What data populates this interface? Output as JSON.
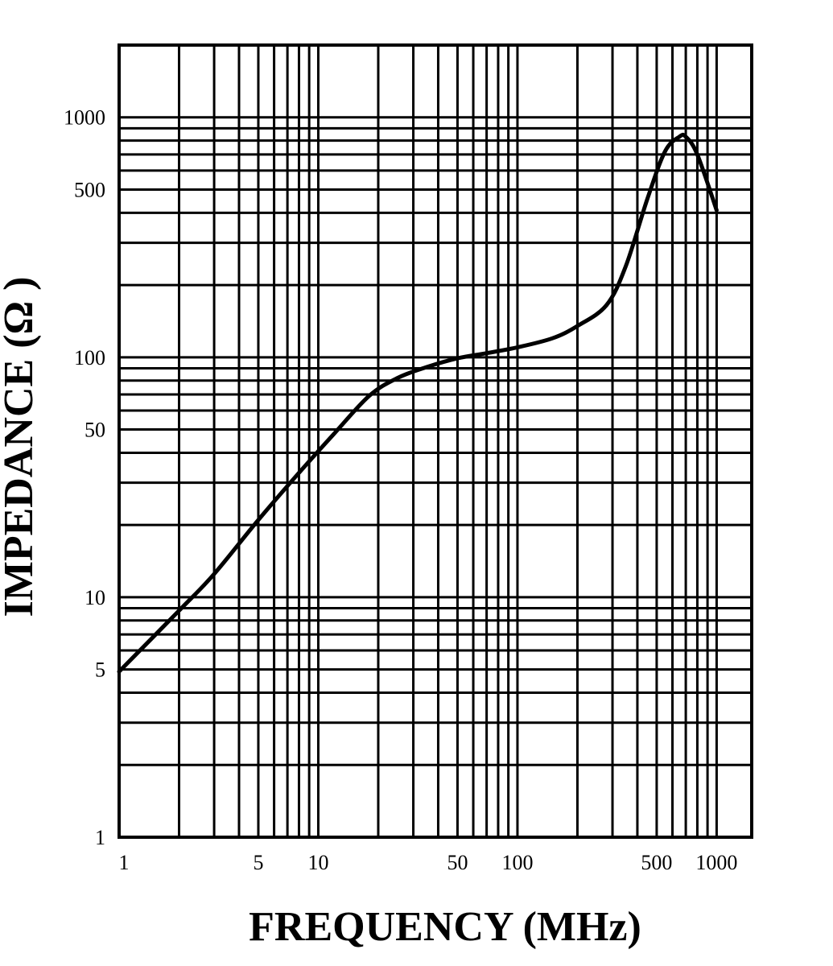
{
  "chart_data": {
    "type": "line",
    "xlabel": "FREQUENCY (MHz)",
    "ylabel": "IMPEDANCE (Ω )",
    "xscale": "log",
    "yscale": "log",
    "xlim": [
      1,
      1500
    ],
    "ylim": [
      1,
      2000
    ],
    "grid": true,
    "x_ticks": [
      {
        "value": 1,
        "label": "1"
      },
      {
        "value": 5,
        "label": "5"
      },
      {
        "value": 10,
        "label": "10"
      },
      {
        "value": 50,
        "label": "50"
      },
      {
        "value": 100,
        "label": "100"
      },
      {
        "value": 500,
        "label": "500"
      },
      {
        "value": 1000,
        "label": "1000"
      }
    ],
    "y_ticks": [
      {
        "value": 1,
        "label": "1"
      },
      {
        "value": 5,
        "label": "5"
      },
      {
        "value": 10,
        "label": "10"
      },
      {
        "value": 50,
        "label": "50"
      },
      {
        "value": 100,
        "label": "100"
      },
      {
        "value": 500,
        "label": "500"
      },
      {
        "value": 1000,
        "label": "1000"
      }
    ],
    "series": [
      {
        "color": "#000000",
        "x": [
          1,
          2,
          3,
          5,
          8,
          12,
          18,
          25,
          35,
          50,
          70,
          100,
          150,
          200,
          280,
          350,
          450,
          550,
          650,
          700,
          800,
          1000
        ],
        "y": [
          4.9,
          8.8,
          12.5,
          21,
          33,
          48,
          69,
          82,
          91,
          99,
          104,
          110,
          120,
          135,
          165,
          240,
          460,
          720,
          830,
          830,
          700,
          410
        ]
      }
    ]
  }
}
